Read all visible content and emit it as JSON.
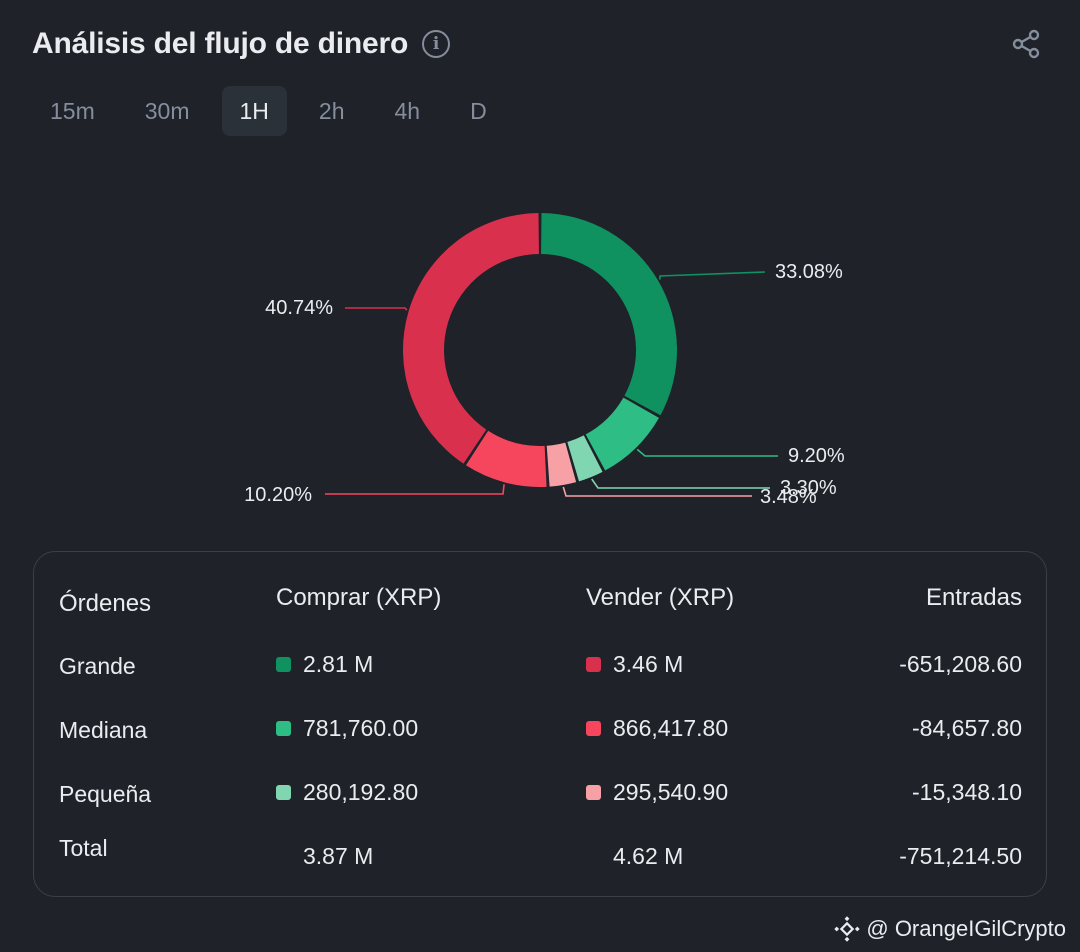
{
  "header": {
    "title": "Análisis del flujo de dinero",
    "info_icon": "info-icon",
    "share_icon": "share-icon"
  },
  "tabs": [
    {
      "label": "15m",
      "active": false
    },
    {
      "label": "30m",
      "active": false
    },
    {
      "label": "1H",
      "active": true
    },
    {
      "label": "2h",
      "active": false
    },
    {
      "label": "4h",
      "active": false
    },
    {
      "label": "D",
      "active": false
    }
  ],
  "chart_data": {
    "type": "pie",
    "slices": [
      {
        "label": "33.08%",
        "value": 33.08,
        "color": "#0f9160"
      },
      {
        "label": "9.20%",
        "value": 9.2,
        "color": "#2ebd85"
      },
      {
        "label": "3.30%",
        "value": 3.3,
        "color": "#7fd6b0"
      },
      {
        "label": "3.48%",
        "value": 3.48,
        "color": "#f7a1a6"
      },
      {
        "label": "10.20%",
        "value": 10.2,
        "color": "#f6465d"
      },
      {
        "label": "40.74%",
        "value": 40.74,
        "color": "#d9304e"
      }
    ]
  },
  "table": {
    "headers": [
      "Órdenes",
      "Comprar (XRP)",
      "Vender (XRP)",
      "Entradas"
    ],
    "rows": [
      {
        "label": "Grande",
        "buy": "2.81 M",
        "sell": "3.46 M",
        "inflow": "-651,208.60",
        "buy_color": "#0f9160",
        "sell_color": "#d9304e"
      },
      {
        "label": "Mediana",
        "buy": "781,760.00",
        "sell": "866,417.80",
        "inflow": "-84,657.80",
        "buy_color": "#2ebd85",
        "sell_color": "#f6465d"
      },
      {
        "label": "Pequeña",
        "buy": "280,192.80",
        "sell": "295,540.90",
        "inflow": "-15,348.10",
        "buy_color": "#7fd6b0",
        "sell_color": "#f7a1a6"
      }
    ],
    "total": {
      "label": "Total",
      "buy": "3.87 M",
      "sell": "4.62 M",
      "inflow": "-751,214.50"
    }
  },
  "watermark": {
    "text": "@ OrangeIGilCrypto",
    "icon": "binance-icon"
  }
}
